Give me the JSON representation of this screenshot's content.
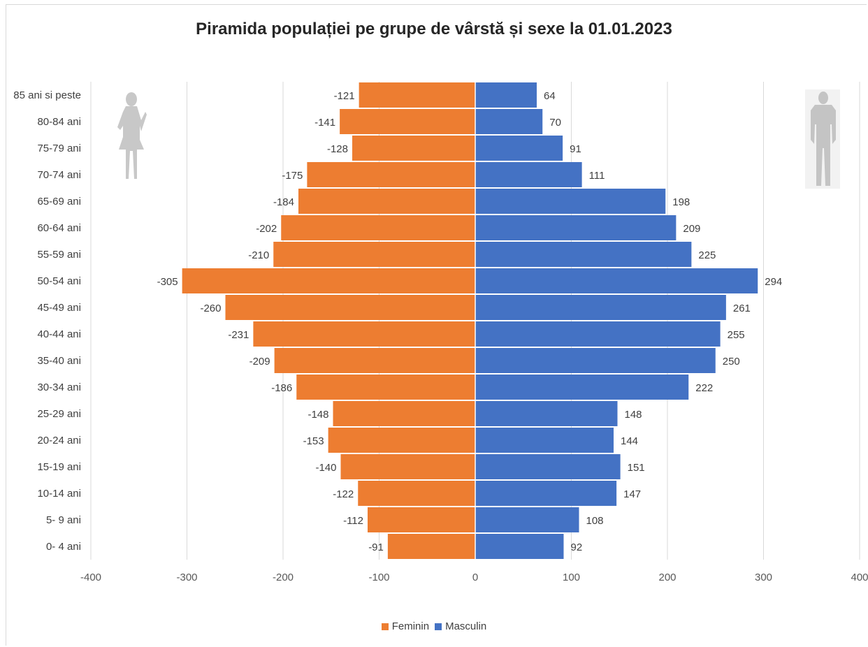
{
  "chart_data": {
    "type": "bar",
    "orientation": "horizontal",
    "title": "Piramida populației pe grupe de vârstă și sexe la 01.01.2023",
    "categories": [
      "85 ani si peste",
      "80-84 ani",
      "75-79 ani",
      "70-74 ani",
      "65-69 ani",
      "60-64 ani",
      "55-59 ani",
      "50-54 ani",
      "45-49 ani",
      "40-44 ani",
      "35-40 ani",
      "30-34 ani",
      "25-29 ani",
      "20-24 ani",
      "15-19 ani",
      "10-14 ani",
      "5- 9 ani",
      "0- 4 ani"
    ],
    "series": [
      {
        "name": "Feminin",
        "color": "#ED7D31",
        "values": [
          -121,
          -141,
          -128,
          -175,
          -184,
          -202,
          -210,
          -305,
          -260,
          -231,
          -209,
          -186,
          -148,
          -153,
          -140,
          -122,
          -112,
          -91
        ]
      },
      {
        "name": "Masculin",
        "color": "#4472C4",
        "values": [
          64,
          70,
          91,
          111,
          198,
          209,
          225,
          294,
          261,
          255,
          250,
          222,
          148,
          144,
          151,
          147,
          108,
          92
        ]
      }
    ],
    "xlim": [
      -400,
      400
    ],
    "xticks": [
      "-400",
      "-300",
      "-200",
      "-100",
      "0",
      "100",
      "200",
      "300",
      "400"
    ],
    "grid": true,
    "legend_position": "bottom",
    "icons": [
      "female-silhouette-icon",
      "male-silhouette-icon"
    ]
  }
}
